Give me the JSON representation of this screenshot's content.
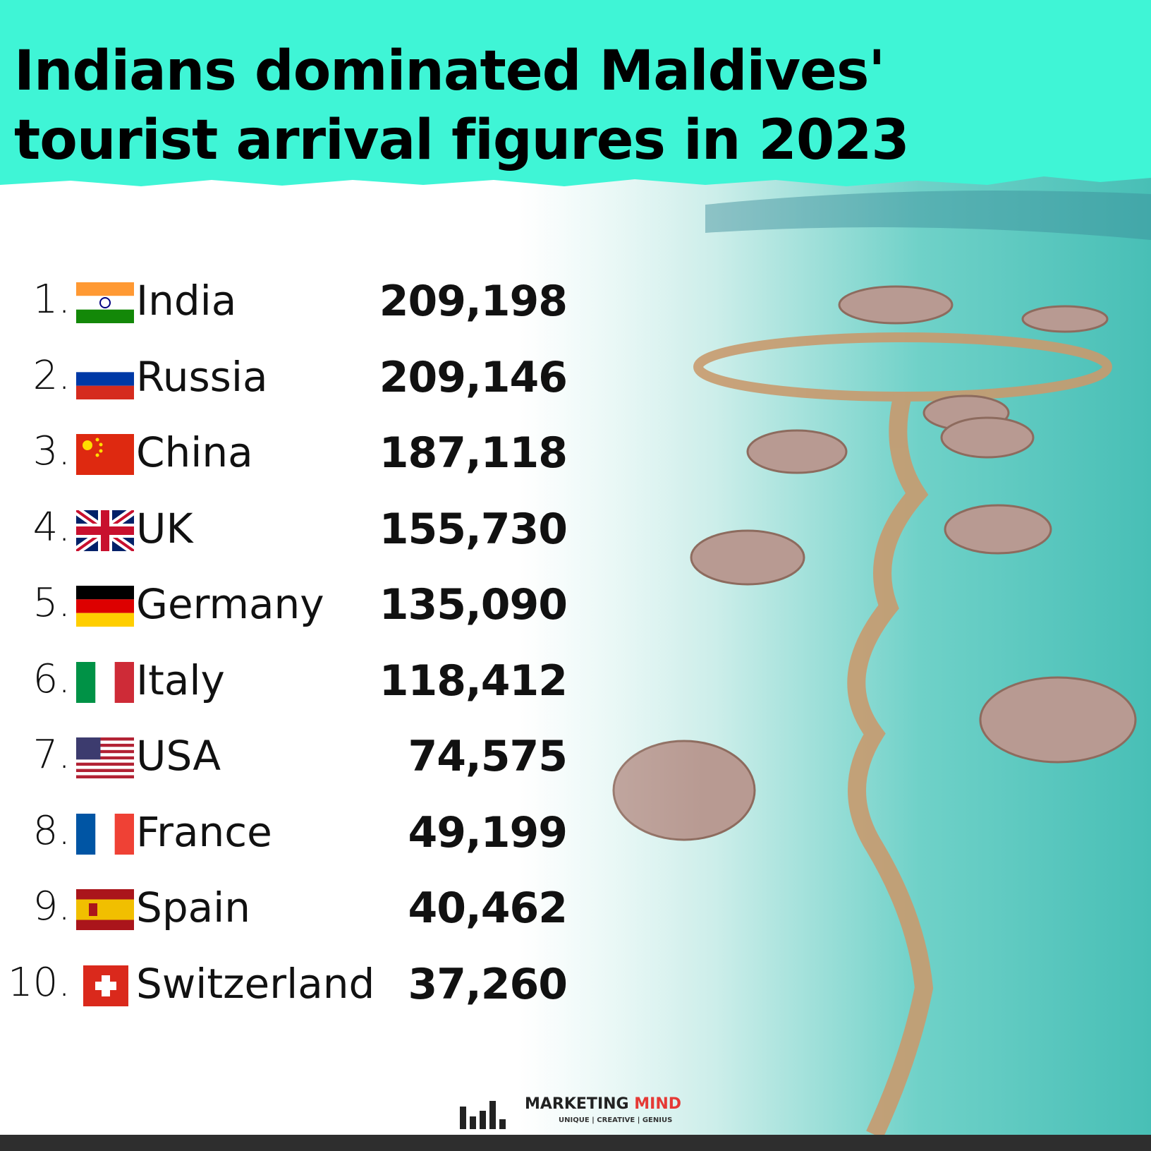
{
  "header": {
    "title": [
      "Indians dominated Maldives'",
      "tourist arrival figures in 2023"
    ]
  },
  "rows": [
    {
      "rank": "1.",
      "country": "India",
      "value": "209,198"
    },
    {
      "rank": "2.",
      "country": "Russia",
      "value": "209,146"
    },
    {
      "rank": "3.",
      "country": "China",
      "value": "187,118"
    },
    {
      "rank": "4.",
      "country": "UK",
      "value": "155,730"
    },
    {
      "rank": "5.",
      "country": "Germany",
      "value": "135,090"
    },
    {
      "rank": "6.",
      "country": "Italy",
      "value": "118,412"
    },
    {
      "rank": "7.",
      "country": "USA",
      "value": "74,575"
    },
    {
      "rank": "8.",
      "country": "France",
      "value": "49,199"
    },
    {
      "rank": "9.",
      "country": "Spain",
      "value": "40,462"
    },
    {
      "rank": "10.",
      "country": "Switzerland",
      "value": "37,260"
    }
  ],
  "footer": {
    "brand": [
      "MARKETING",
      "MIND"
    ],
    "tagline": "UNIQUE | CREATIVE | GENIUS"
  }
}
